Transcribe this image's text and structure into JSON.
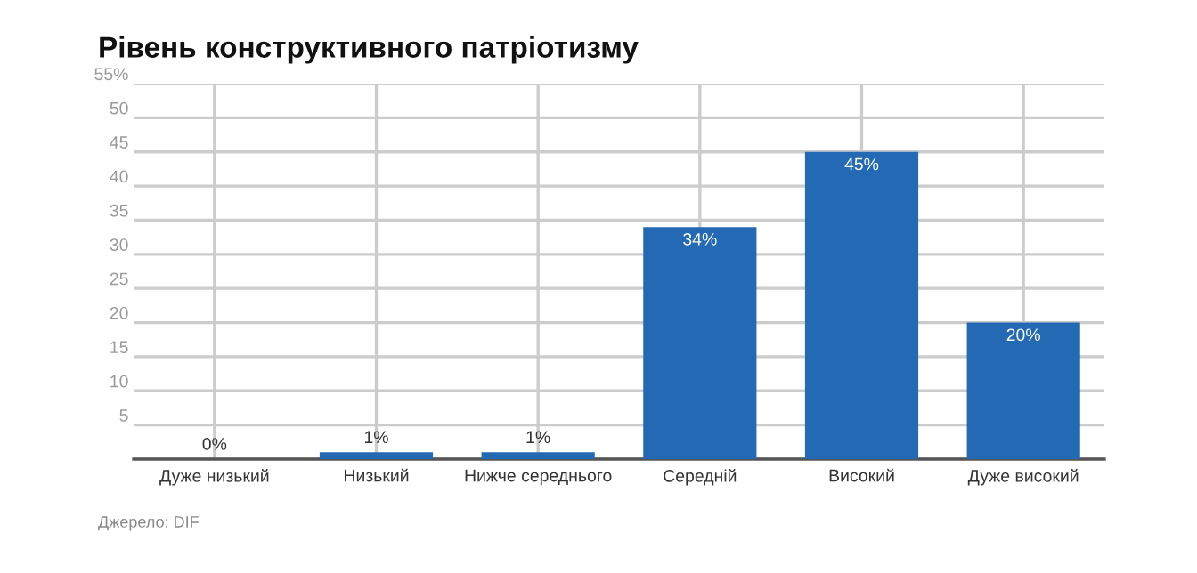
{
  "chart_data": {
    "type": "bar",
    "title": "Рівень конструктивного патріотизму",
    "categories": [
      "Дуже низький",
      "Низький",
      "Нижче середнього",
      "Середній",
      "Високий",
      "Дуже високий"
    ],
    "values": [
      0,
      1,
      1,
      34,
      45,
      20
    ],
    "value_labels": [
      "0%",
      "1%",
      "1%",
      "34%",
      "45%",
      "20%"
    ],
    "color": "#2369b3",
    "ylim": [
      0,
      55
    ],
    "yticks": [
      {
        "value": 0,
        "label": null
      },
      5,
      10,
      15,
      20,
      25,
      30,
      35,
      40,
      45,
      50,
      {
        "value": 55,
        "label": "55%"
      }
    ],
    "grid": true,
    "annotations": [
      "Джерело: DIF"
    ]
  }
}
